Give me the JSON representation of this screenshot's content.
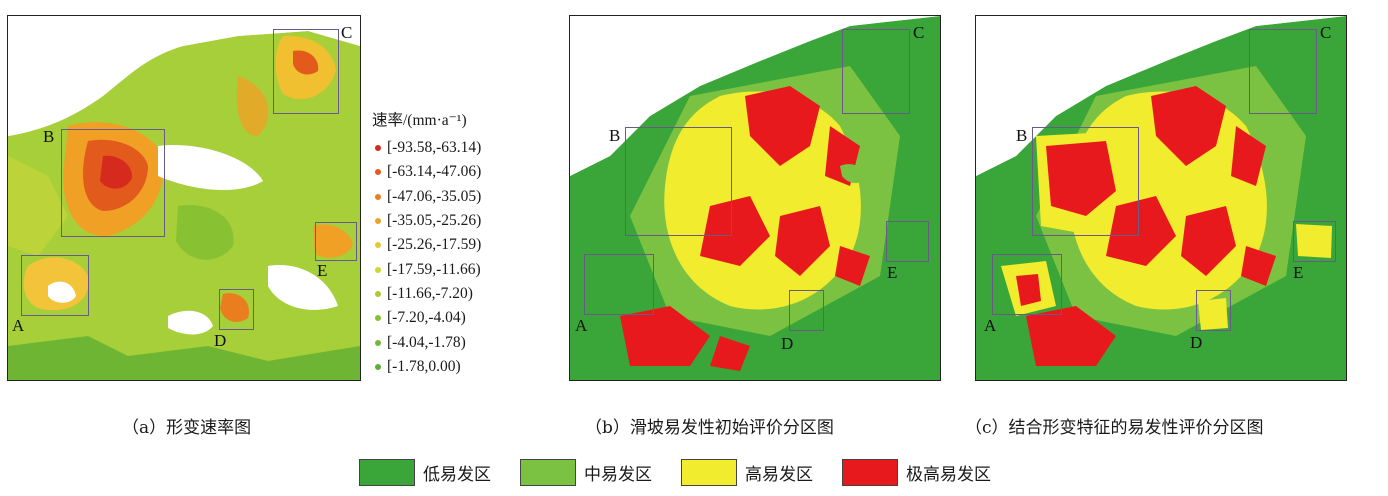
{
  "panels": [
    {
      "id": "a",
      "caption": "（a）形变速率图",
      "boxes": [
        "A",
        "B",
        "C",
        "D",
        "E"
      ]
    },
    {
      "id": "b",
      "caption": "（b）滑坡易发性初始评价分区图",
      "boxes": [
        "A",
        "B",
        "C",
        "D",
        "E"
      ]
    },
    {
      "id": "c",
      "caption": "（c）结合形变特征的易发性评价分区图",
      "boxes": [
        "A",
        "B",
        "C",
        "D",
        "E"
      ]
    }
  ],
  "rate_legend": {
    "title": "速率/(mm·a⁻¹)",
    "classes": [
      {
        "label": "[-93.58,-63.14)",
        "color": "#d62a1e"
      },
      {
        "label": "[-63.14,-47.06)",
        "color": "#e25a1c"
      },
      {
        "label": "[-47.06,-35.05)",
        "color": "#ea7e1e"
      },
      {
        "label": "[-35.05,-25.26)",
        "color": "#f0a025"
      },
      {
        "label": "[-25.26,-17.59)",
        "color": "#e8c82c"
      },
      {
        "label": "[-17.59,-11.66)",
        "color": "#cfd62e"
      },
      {
        "label": "[-11.66,-7.20)",
        "color": "#a9cc30"
      },
      {
        "label": "[-7.20,-4.04)",
        "color": "#88c232"
      },
      {
        "label": "[-4.04,-1.78)",
        "color": "#72b834"
      },
      {
        "label": "[-1.78,0.00)",
        "color": "#5fae36"
      }
    ]
  },
  "zone_legend": [
    {
      "label": "低易发区",
      "color": "#3aa538"
    },
    {
      "label": "中易发区",
      "color": "#7cc242"
    },
    {
      "label": "高易发区",
      "color": "#f2ec2e"
    },
    {
      "label": "极高易发区",
      "color": "#e8191c"
    }
  ]
}
